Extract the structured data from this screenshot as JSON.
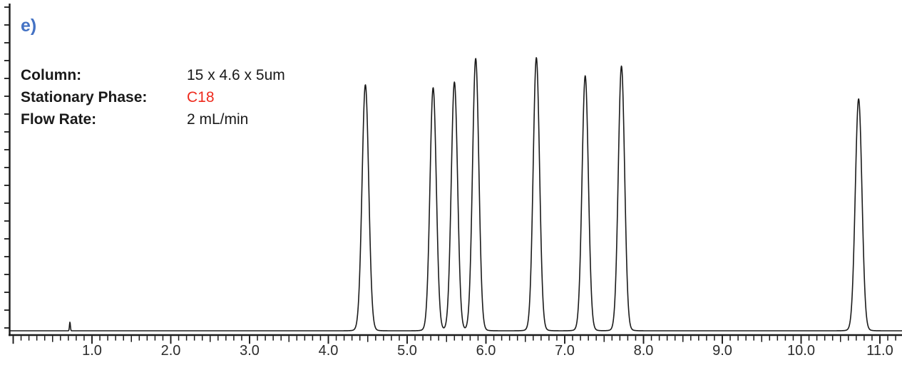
{
  "panel": {
    "label": "e)",
    "label_color": "#4472c4"
  },
  "annotations": {
    "rows": [
      {
        "label": "Column:",
        "value": "15 x 4.6 x 5um",
        "value_color": "#1a1a1a"
      },
      {
        "label": "Stationary Phase:",
        "value": "C18",
        "value_color": "#ee2a1d"
      },
      {
        "label": "Flow Rate:",
        "value": "2 mL/min",
        "value_color": "#1a1a1a"
      }
    ]
  },
  "chart_data": {
    "type": "line",
    "kind": "hplc-chromatogram",
    "title": "",
    "xlabel": "",
    "ylabel": "",
    "grid": false,
    "legend": false,
    "line_color": "#1a1a1a",
    "axis_color": "#1a1a1a",
    "tick_label_color": "#2b2b2b",
    "x_axis": {
      "range_shown": [
        0.0,
        11.28
      ],
      "major_tick_interval": 1.0,
      "half_tick_interval": 0.5,
      "minor_tick_interval": 0.1,
      "tick_label_values": [
        1,
        2,
        3,
        4,
        5,
        6,
        7,
        8,
        9,
        10,
        11
      ],
      "tick_labels": [
        "1.0",
        "2.0",
        "3.0",
        "4.0",
        "5.0",
        "6.0",
        "7.0",
        "8.0",
        "9.0",
        "10.0",
        "11.0"
      ]
    },
    "y_axis": {
      "tick_labels": [],
      "tick_count": 19
    },
    "peaks": [
      {
        "rt": 0.72,
        "rel_height": 0.032,
        "sigma": 0.006
      },
      {
        "rt": 4.47,
        "rel_height": 0.9,
        "sigma": 0.042
      },
      {
        "rt": 5.33,
        "rel_height": 0.889,
        "sigma": 0.04
      },
      {
        "rt": 5.6,
        "rel_height": 0.91,
        "sigma": 0.04
      },
      {
        "rt": 5.87,
        "rel_height": 0.997,
        "sigma": 0.04
      },
      {
        "rt": 6.64,
        "rel_height": 1.0,
        "sigma": 0.04
      },
      {
        "rt": 7.26,
        "rel_height": 0.933,
        "sigma": 0.04
      },
      {
        "rt": 7.72,
        "rel_height": 0.969,
        "sigma": 0.04
      },
      {
        "rt": 10.73,
        "rel_height": 0.848,
        "sigma": 0.042
      }
    ]
  }
}
